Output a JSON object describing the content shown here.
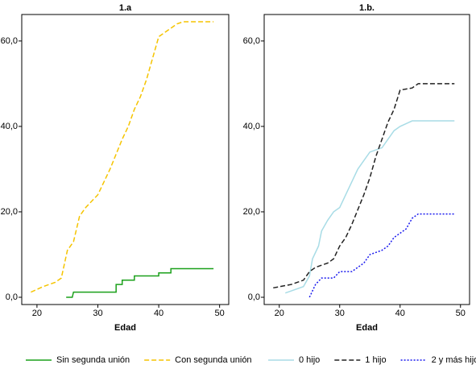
{
  "chart_data": [
    {
      "type": "line",
      "title": "1.a",
      "x_label": "Edad",
      "xlim": [
        17.5,
        51.5
      ],
      "xticks": [
        20,
        30,
        40,
        50
      ],
      "ylim": [
        -1.7,
        66.2
      ],
      "yticks": [
        {
          "value": 0,
          "label": "0,0"
        },
        {
          "value": 20,
          "label": "20,0"
        },
        {
          "value": 40,
          "label": "40,0"
        },
        {
          "value": 60,
          "label": "60,0"
        }
      ],
      "series": [
        {
          "name": "Sin segunda unión",
          "color": "#1aa01a",
          "dash": "solid",
          "x": [
            24.8,
            25.8,
            26,
            33,
            33,
            34,
            34,
            36,
            36,
            40,
            40,
            42,
            42,
            49
          ],
          "values": [
            0,
            0,
            1.2,
            1.2,
            3,
            3,
            4,
            4,
            5,
            5,
            5.7,
            5.7,
            6.7,
            6.7
          ]
        },
        {
          "name": "Con segunda unión",
          "color": "#f5c400",
          "dash": "dashed",
          "x": [
            19,
            21,
            23,
            24,
            25,
            26,
            27,
            28,
            30,
            32,
            34,
            35,
            36,
            37,
            38,
            40,
            42,
            43,
            44,
            49
          ],
          "values": [
            1.2,
            2.5,
            3.5,
            4.5,
            11,
            13,
            19,
            21,
            24,
            30,
            37,
            40,
            44,
            47,
            51,
            61,
            63,
            64,
            64.5,
            64.5
          ]
        }
      ]
    },
    {
      "type": "line",
      "title": "1.b.",
      "x_label": "Edad",
      "xlim": [
        17.5,
        51.5
      ],
      "xticks": [
        20,
        30,
        40,
        50
      ],
      "ylim": [
        -1.7,
        66.2
      ],
      "yticks": [
        {
          "value": 0,
          "label": "0,0"
        },
        {
          "value": 20,
          "label": "20,0"
        },
        {
          "value": 40,
          "label": "40,0"
        },
        {
          "value": 60,
          "label": "60,0"
        }
      ],
      "series": [
        {
          "name": "0 hijo",
          "color": "#a8dce6",
          "dash": "solid",
          "x": [
            21,
            22,
            24,
            25,
            25.5,
            26.5,
            27,
            28,
            29,
            30,
            31,
            32,
            33,
            34,
            35,
            37,
            38,
            39,
            40,
            42,
            49
          ],
          "values": [
            1,
            1.5,
            2.5,
            5,
            9,
            12,
            15.5,
            18,
            20,
            21,
            24,
            27,
            30,
            32,
            34,
            35,
            37,
            39,
            40,
            41.3,
            41.3
          ]
        },
        {
          "name": "1 hijo",
          "color": "#222222",
          "dash": "dashed",
          "x": [
            19,
            22,
            24,
            25,
            26,
            27,
            28,
            29,
            30,
            31,
            32,
            34,
            35,
            36,
            37,
            38,
            39,
            40,
            42,
            43,
            49
          ],
          "values": [
            2.2,
            3,
            4,
            6,
            7,
            7.5,
            8,
            9,
            12,
            14,
            17,
            24,
            28,
            33,
            37,
            41,
            44,
            48.5,
            49,
            50,
            50
          ]
        },
        {
          "name": "2 y más hijos",
          "color": "#1a1aee",
          "dash": "dotted",
          "x": [
            25,
            26,
            27,
            29,
            30,
            32,
            33,
            34,
            35,
            37,
            38,
            39,
            40,
            41,
            42,
            43,
            49
          ],
          "values": [
            0,
            3,
            4.5,
            4.5,
            6,
            6,
            7,
            8,
            10,
            11,
            12,
            14,
            15,
            16,
            18.5,
            19.5,
            19.5
          ]
        }
      ]
    }
  ]
}
